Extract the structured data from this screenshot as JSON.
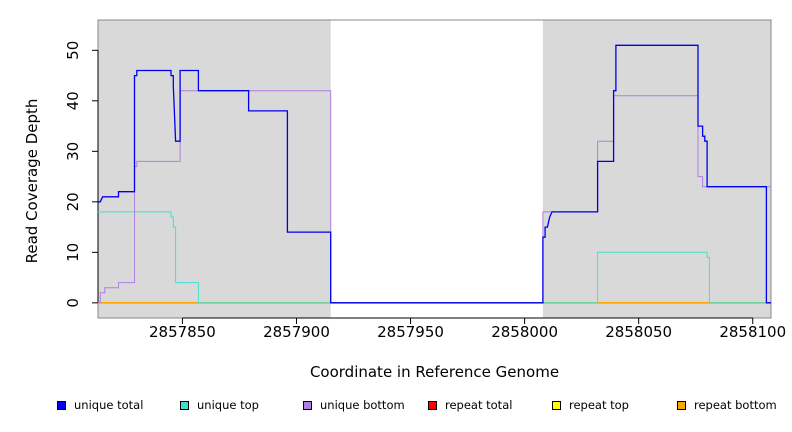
{
  "chart_data": {
    "type": "line",
    "title": "",
    "xlabel": "Coordinate in Reference Genome",
    "ylabel": "Read Coverage Depth",
    "xlim": [
      2857813,
      2858108
    ],
    "ylim": [
      -3,
      56
    ],
    "xticks": [
      2857850,
      2857900,
      2857950,
      2858000,
      2858050,
      2858100
    ],
    "yticks": [
      0,
      10,
      20,
      30,
      40,
      50
    ],
    "grid": false,
    "legend_position": "bottom",
    "shaded_regions": [
      [
        2857813,
        2857915
      ],
      [
        2858008,
        2858108
      ]
    ],
    "colors": {
      "shade": "#d9d9d9",
      "unique_total": "#0000ee",
      "unique_top": "#40e0d0",
      "unique_bottom": "#b07fe0",
      "repeat_total": "#ff0000",
      "repeat_top": "#ffff00",
      "repeat_bottom": "#ffa500"
    },
    "series": [
      {
        "name": "unique total",
        "color": "#0000ee",
        "x": [
          2857813,
          2857814,
          2857815,
          2857816,
          2857822,
          2857822,
          2857829,
          2857829,
          2857830,
          2857830,
          2857837,
          2857837,
          2857845,
          2857845,
          2857846,
          2857846,
          2857847,
          2857849,
          2857849,
          2857857,
          2857857,
          2857879,
          2857879,
          2857896,
          2857896,
          2857915,
          2857915,
          2858008,
          2858008,
          2858009,
          2858009,
          2858010,
          2858010,
          2858011,
          2858011,
          2858012,
          2858012,
          2858032,
          2858032,
          2858039,
          2858039,
          2858040,
          2858040,
          2858076,
          2858076,
          2858078,
          2858078,
          2858079,
          2858079,
          2858080,
          2858080,
          2858106,
          2858106,
          2858108
        ],
        "y": [
          20,
          20,
          21,
          21,
          21,
          22,
          22,
          45,
          45,
          46,
          46,
          46,
          46,
          45,
          45,
          43,
          32,
          32,
          46,
          46,
          42,
          42,
          38,
          38,
          14,
          14,
          0,
          0,
          13,
          13,
          15,
          15,
          15,
          17,
          17,
          18,
          18,
          18,
          28,
          28,
          42,
          42,
          51,
          51,
          35,
          35,
          33,
          33,
          32,
          32,
          23,
          23,
          0,
          0
        ]
      },
      {
        "name": "unique top",
        "color": "#40e0d0",
        "x": [
          2857813,
          2857845,
          2857845,
          2857846,
          2857846,
          2857847,
          2857847,
          2857857,
          2857857,
          2858032,
          2858032,
          2858080,
          2858080,
          2858081,
          2858081,
          2858108
        ],
        "y": [
          18,
          18,
          17,
          17,
          15,
          15,
          4,
          4,
          0,
          0,
          10,
          10,
          9,
          9,
          0,
          0
        ]
      },
      {
        "name": "unique bottom",
        "color": "#b07fe0",
        "x": [
          2857813,
          2857814,
          2857814,
          2857816,
          2857816,
          2857822,
          2857822,
          2857829,
          2857829,
          2857830,
          2857830,
          2857849,
          2857849,
          2857915,
          2857915,
          2858008,
          2858008,
          2858032,
          2858032,
          2858039,
          2858039,
          2858040,
          2858040,
          2858076,
          2858076,
          2858078,
          2858078,
          2858080,
          2858080,
          2858108
        ],
        "y": [
          0,
          0,
          2,
          2,
          3,
          3,
          4,
          4,
          27,
          27,
          28,
          28,
          42,
          42,
          0,
          0,
          18,
          18,
          32,
          32,
          41,
          41,
          41,
          41,
          25,
          25,
          23,
          23,
          23,
          23
        ]
      },
      {
        "name": "repeat total",
        "color": "#ff0000",
        "x": [],
        "y": []
      },
      {
        "name": "repeat top",
        "color": "#ffff00",
        "x": [],
        "y": []
      },
      {
        "name": "repeat bottom",
        "color": "#ffa500",
        "x": [
          2857813,
          2857915,
          2857915,
          2858008,
          2858008,
          2858108
        ],
        "y": [
          0,
          0,
          0,
          0,
          0,
          0
        ]
      }
    ]
  }
}
